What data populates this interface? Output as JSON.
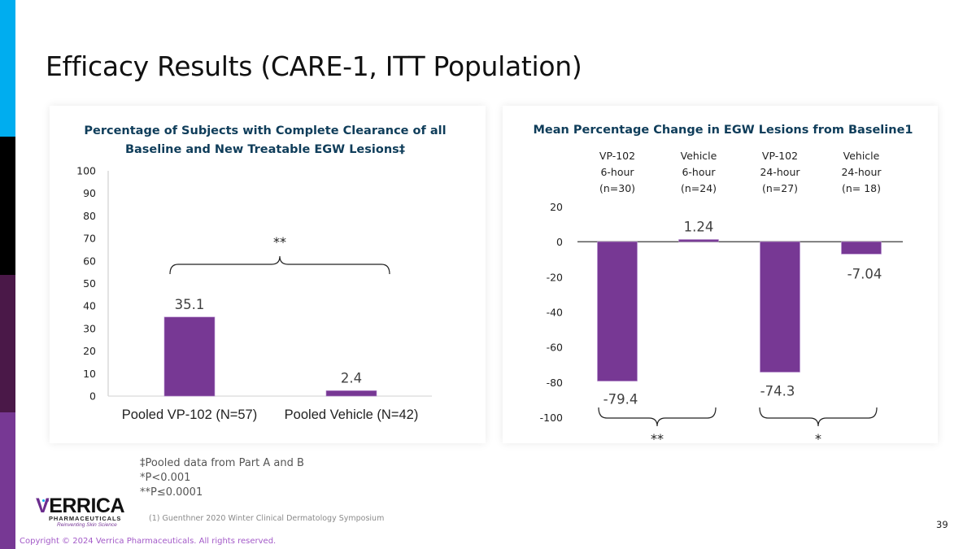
{
  "slide": {
    "title": "Efficacy Results (CARE-1, ITT Population)",
    "page_number": "39",
    "copyright": "Copyright © 2024 Verrica Pharmaceuticals. All rights reserved.",
    "accent_colors": {
      "cyan": "#00adef",
      "black": "#000000",
      "dark_purple": "#4a1848",
      "purple": "#773894"
    }
  },
  "footnotes": {
    "pooled": "‡Pooled data from Part A and B",
    "p1": "*P<0.001",
    "p2": "**P≤0.0001",
    "reference": "(1) Guenthner 2020 Winter Clinical Dermatology Symposium"
  },
  "logo": {
    "name": "VERRICA",
    "subtitle": "PHARMACEUTICALS",
    "tagline": "Reinventing Skin Science"
  },
  "chart_data": [
    {
      "type": "bar",
      "title": "Percentage of Subjects with Complete Clearance of all Baseline and New Treatable EGW Lesions‡",
      "title_lines": [
        "Percentage of Subjects with Complete Clearance of all",
        "Baseline and New Treatable EGW Lesions‡"
      ],
      "categories": [
        "Pooled VP-102 (N=57)",
        "Pooled Vehicle (N=42)"
      ],
      "values": [
        35.1,
        2.4
      ],
      "data_labels": [
        "35.1",
        "2.4"
      ],
      "xlabel": "",
      "ylabel": "",
      "ylim": [
        0,
        100
      ],
      "yticks": [
        0,
        10,
        20,
        30,
        40,
        50,
        60,
        70,
        80,
        90,
        100
      ],
      "bar_color": "#773894",
      "grid": false,
      "annotations": [
        {
          "text": "**",
          "type": "brace",
          "spans": [
            "Pooled VP-102 (N=57)",
            "Pooled Vehicle (N=42)"
          ],
          "position": "above"
        }
      ]
    },
    {
      "type": "bar",
      "title": "Mean Percentage Change in EGW Lesions from Baseline1",
      "categories": [
        {
          "line1": "VP-102",
          "line2": "6-hour",
          "line3": "(n=30)"
        },
        {
          "line1": "Vehicle",
          "line2": "6-hour",
          "line3": "(n=24)"
        },
        {
          "line1": "VP-102",
          "line2": "24-hour",
          "line3": "(n=27)"
        },
        {
          "line1": "Vehicle",
          "line2": "24-hour",
          "line3": "(n= 18)"
        }
      ],
      "values": [
        -79.4,
        1.24,
        -74.3,
        -7.04
      ],
      "data_labels": [
        "-79.4",
        "1.24",
        "-74.3",
        "-7.04"
      ],
      "xlabel": "",
      "ylabel": "",
      "ylim": [
        -100,
        20
      ],
      "yticks": [
        20,
        0,
        -20,
        -40,
        -60,
        -80,
        -100
      ],
      "bar_color": "#773894",
      "grid": false,
      "annotations": [
        {
          "text": "**",
          "type": "brace",
          "spans": [
            0,
            1
          ],
          "position": "below"
        },
        {
          "text": "*",
          "type": "brace",
          "spans": [
            2,
            3
          ],
          "position": "below"
        }
      ]
    }
  ]
}
